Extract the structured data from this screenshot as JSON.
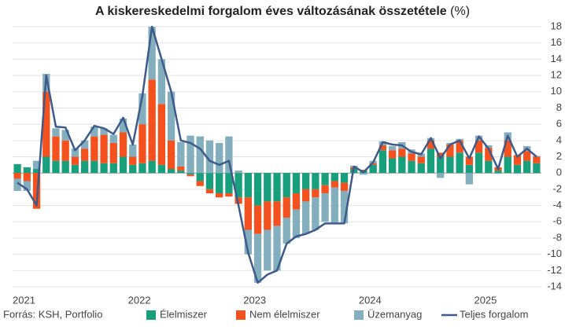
{
  "chart_data": {
    "type": "stacked-bar-line",
    "title": "A kiskereskedelmi forgalom éves változásának összetétele",
    "title_unit": "(%)",
    "source": "Forrás: KSH, Portfolio",
    "categories": [
      "2021",
      null,
      null,
      null,
      null,
      null,
      null,
      null,
      null,
      null,
      null,
      null,
      "2022",
      null,
      null,
      null,
      null,
      null,
      null,
      null,
      null,
      null,
      null,
      null,
      "2023",
      null,
      null,
      null,
      null,
      null,
      null,
      null,
      null,
      null,
      null,
      null,
      "2024",
      null,
      null,
      null,
      null,
      null,
      null,
      null,
      null,
      null,
      null,
      null,
      "2025",
      null,
      null,
      null,
      null,
      null,
      null
    ],
    "series": [
      {
        "name": "Élelmiszer",
        "color": "#17a07b",
        "kind": "bar",
        "values": [
          1.1,
          0.7,
          0.5,
          2.0,
          1.5,
          1.5,
          1.0,
          1.5,
          1.5,
          1.2,
          1.2,
          2.0,
          1.0,
          1.2,
          1.5,
          1.0,
          0.5,
          0.3,
          -0.2,
          -1.0,
          -2.0,
          -2.5,
          -2.5,
          -3.0,
          -3.0,
          -4.0,
          -3.5,
          -3.5,
          -3.0,
          -2.5,
          -2.0,
          -2.0,
          -1.5,
          -1.0,
          -1.2,
          0.5,
          0.3,
          1.0,
          2.8,
          1.8,
          2.0,
          1.5,
          1.2,
          3.0,
          2.0,
          2.0,
          2.5,
          1.0,
          2.5,
          1.5,
          0.3,
          2.0,
          1.0,
          1.5,
          1.2
        ]
      },
      {
        "name": "Nem élelmiszer",
        "color": "#f4511e",
        "kind": "bar",
        "values": [
          -0.7,
          -1.0,
          -4.4,
          8.0,
          3.0,
          2.5,
          1.0,
          1.5,
          3.0,
          3.5,
          2.5,
          3.0,
          1.0,
          4.8,
          10.0,
          7.5,
          3.5,
          0.5,
          -0.2,
          -0.6,
          -0.5,
          -0.5,
          -0.4,
          -0.8,
          -4.0,
          -3.5,
          -3.5,
          -3.0,
          -2.5,
          -2.0,
          -1.5,
          -1.0,
          -1.0,
          -0.8,
          -1.0,
          0.2,
          0.1,
          0.2,
          0.6,
          1.0,
          1.0,
          0.9,
          0.8,
          1.0,
          0.5,
          1.5,
          1.5,
          1.0,
          1.5,
          1.6,
          0.4,
          2.0,
          1.2,
          1.2,
          0.8
        ]
      },
      {
        "name": "Üzemanyag",
        "color": "#82aebd",
        "kind": "bar",
        "values": [
          -1.5,
          -1.2,
          1.0,
          2.2,
          1.0,
          1.3,
          1.0,
          1.0,
          1.2,
          0.8,
          1.0,
          1.7,
          1.5,
          3.8,
          6.5,
          5.5,
          6.0,
          3.0,
          4.6,
          4.5,
          4.0,
          3.7,
          4.5,
          0.3,
          -3.0,
          -6.0,
          -5.0,
          -5.5,
          -3.2,
          -3.5,
          -4.0,
          -4.0,
          -3.5,
          -4.3,
          -4.0,
          0.2,
          -0.2,
          0.3,
          0.5,
          0.5,
          0.8,
          0.5,
          0.4,
          0.3,
          -0.6,
          0.2,
          0.2,
          -1.4,
          0.6,
          0.3,
          -0.1,
          1.0,
          -0.1,
          0.6,
          0.1
        ]
      },
      {
        "name": "Teljes forgalom",
        "color": "#3d5a8a",
        "kind": "line",
        "values": [
          -1.2,
          -2.0,
          -4.0,
          12.0,
          5.7,
          5.6,
          2.8,
          4.0,
          5.8,
          5.5,
          4.8,
          6.8,
          3.5,
          9.5,
          18.0,
          14.0,
          10.0,
          4.0,
          3.7,
          3.0,
          1.5,
          1.0,
          1.5,
          -4.0,
          -9.8,
          -13.5,
          -12.5,
          -12.0,
          -8.7,
          -7.8,
          -7.5,
          -7.0,
          -6.2,
          -6.2,
          -6.2,
          0.8,
          0.1,
          1.3,
          3.8,
          3.5,
          3.4,
          2.6,
          2.3,
          4.3,
          1.8,
          3.5,
          4.0,
          1.8,
          4.5,
          3.0,
          0.5,
          4.6,
          2.0,
          3.0,
          2.0
        ]
      }
    ],
    "ylim": [
      -14,
      18
    ],
    "yticks": [
      -14,
      -12,
      -10,
      -8,
      -6,
      -4,
      -2,
      0,
      2,
      4,
      6,
      8,
      10,
      12,
      14,
      16,
      18
    ],
    "grid": true
  }
}
